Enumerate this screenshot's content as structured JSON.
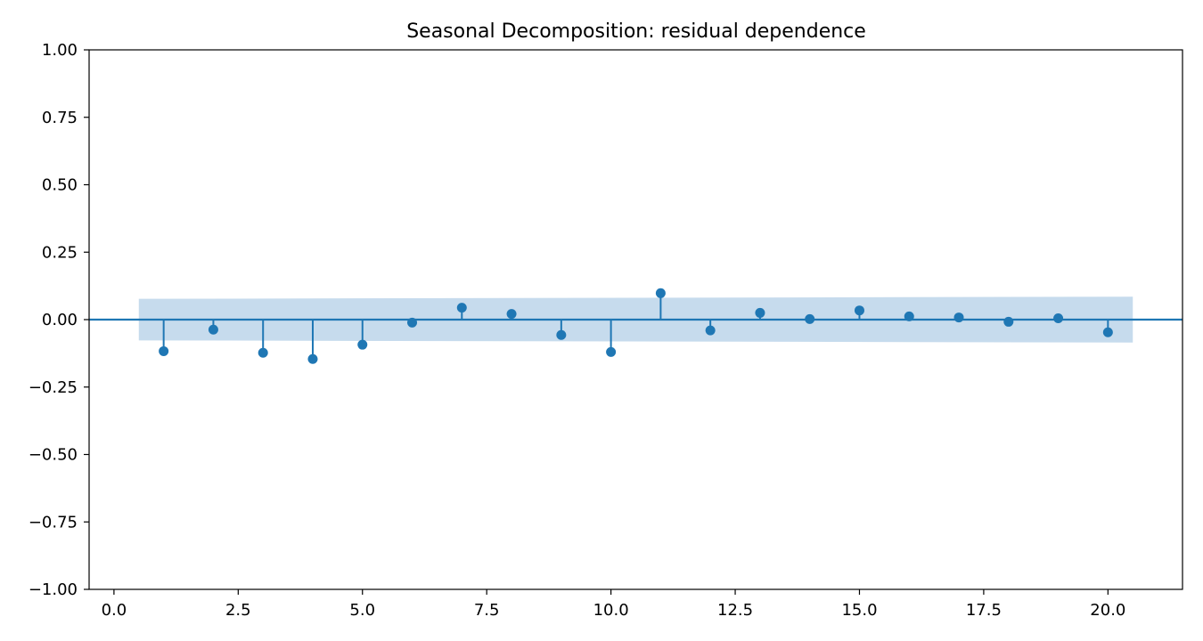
{
  "chart_data": {
    "type": "stem",
    "title": "Seasonal Decomposition: residual dependence",
    "xlabel": "",
    "ylabel": "",
    "xlim": [
      -0.5,
      21.5
    ],
    "ylim": [
      -1.0,
      1.0
    ],
    "x_ticks": [
      0.0,
      2.5,
      5.0,
      7.5,
      10.0,
      12.5,
      15.0,
      17.5,
      20.0
    ],
    "x_tick_labels": [
      "0.0",
      "2.5",
      "5.0",
      "7.5",
      "10.0",
      "12.5",
      "15.0",
      "17.5",
      "20.0"
    ],
    "y_ticks": [
      -1.0,
      -0.75,
      -0.5,
      -0.25,
      0.0,
      0.25,
      0.5,
      0.75,
      1.0
    ],
    "y_tick_labels": [
      "−1.00",
      "−0.75",
      "−0.50",
      "−0.25",
      "0.00",
      "0.25",
      "0.50",
      "0.75",
      "1.00"
    ],
    "lags": [
      1,
      2,
      3,
      4,
      5,
      6,
      7,
      8,
      9,
      10,
      11,
      12,
      13,
      14,
      15,
      16,
      17,
      18,
      19,
      20
    ],
    "values": [
      -0.117,
      -0.037,
      -0.123,
      -0.146,
      -0.093,
      -0.011,
      0.044,
      0.021,
      -0.057,
      -0.12,
      0.098,
      -0.04,
      0.025,
      0.002,
      0.034,
      0.012,
      0.008,
      -0.008,
      0.005,
      -0.047
    ],
    "confidence_band": {
      "x": [
        0.5,
        20.5
      ],
      "upper": [
        0.077,
        0.085
      ],
      "lower": [
        -0.077,
        -0.085
      ]
    },
    "grid": false,
    "legend": "none",
    "colors": {
      "stem": "#1f77b4",
      "band": "#c6dbed",
      "zero_line": "#1f77b4"
    }
  }
}
